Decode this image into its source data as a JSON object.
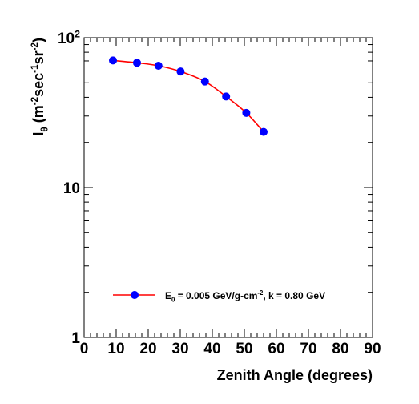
{
  "chart_data": {
    "type": "line",
    "xlabel": "Zenith Angle (degrees)",
    "ylabel": {
      "parts": [
        {
          "t": "I",
          "s": 0
        },
        {
          "t": "θ",
          "s": -1
        },
        {
          "t": " (m",
          "s": 0
        },
        {
          "t": "-2",
          "s": 1
        },
        {
          "t": "sec",
          "s": 0
        },
        {
          "t": "-1",
          "s": 1
        },
        {
          "t": "sr",
          "s": 0
        },
        {
          "t": "-2",
          "s": 1
        },
        {
          "t": ")",
          "s": 0
        }
      ]
    },
    "xlim": [
      0,
      90
    ],
    "ylim": [
      1,
      100
    ],
    "yscale": "log",
    "x_ticks": [
      0,
      10,
      20,
      30,
      40,
      50,
      60,
      70,
      80,
      90
    ],
    "x_tick_labels": [
      "0",
      "10",
      "20",
      "30",
      "40",
      "50",
      "60",
      "70",
      "80",
      "90"
    ],
    "y_tick_labels": [
      {
        "value": 1,
        "parts": [
          {
            "t": "1",
            "s": 0
          }
        ]
      },
      {
        "value": 10,
        "parts": [
          {
            "t": "10",
            "s": 0
          }
        ]
      },
      {
        "value": 100,
        "parts": [
          {
            "t": "10",
            "s": 0
          },
          {
            "t": "2",
            "s": 1
          }
        ]
      }
    ],
    "grid": false,
    "series": [
      {
        "marker_color": "#0000ff",
        "line_color": "#ff0000",
        "x": [
          9,
          16.5,
          23.2,
          30.1,
          37.7,
          44.3,
          50.6,
          56.0
        ],
        "y": [
          70.5,
          68.0,
          65.0,
          59.5,
          51.0,
          40.5,
          31.5,
          23.5
        ]
      }
    ],
    "legend": {
      "position": "bottom-center",
      "parts": [
        {
          "t": "E",
          "s": 0
        },
        {
          "t": "0",
          "s": -1
        },
        {
          "t": " = 0.005 GeV/g-cm",
          "s": 0
        },
        {
          "t": "-2",
          "s": 1
        },
        {
          "t": ", k = 0.80 GeV",
          "s": 0
        }
      ]
    }
  }
}
